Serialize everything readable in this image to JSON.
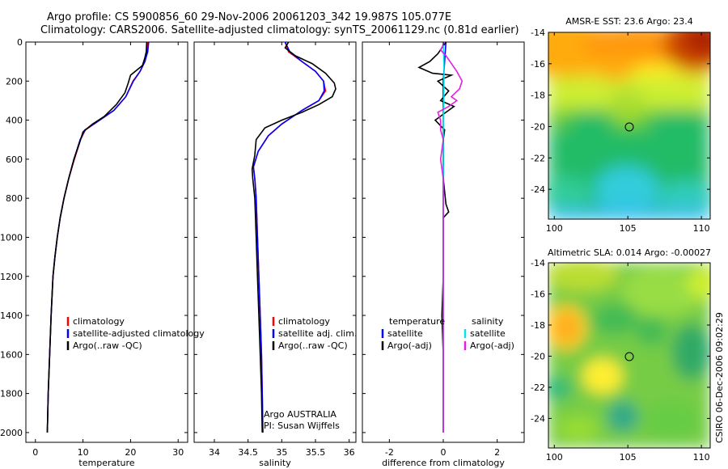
{
  "header": {
    "line1": "Argo profile: CS 5900856_60 29-Nov-2006 20061203_342 19.987S 105.077E",
    "line2": "Climatology: CARS2006. Satellite-adjusted climatology: synTS_20061129.nc (0.81d earlier)"
  },
  "footer": {
    "stamp": "CSIRO 06-Dec-2006 09:02:29"
  },
  "colors": {
    "climatology": "#ff0000",
    "satellite": "#0000ff",
    "argo": "#000000",
    "sal_satellite": "#00e5ee",
    "sal_argo": "#e020e0"
  },
  "chart_data": [
    {
      "type": "line",
      "id": "temperature",
      "xlabel": "temperature",
      "ylabel": "",
      "xlim": [
        -2,
        32
      ],
      "ylim": [
        2050,
        0
      ],
      "xticks": [
        0,
        10,
        20,
        30
      ],
      "yticks": [
        0,
        200,
        400,
        600,
        800,
        1000,
        1200,
        1400,
        1600,
        1800,
        2000
      ],
      "legend": [
        "climatology",
        "satellite-adjusted climatology",
        "Argo(..raw -QC)"
      ],
      "series": [
        {
          "name": "climatology",
          "color": "#ff0000",
          "points": [
            [
              23.6,
              0
            ],
            [
              23.5,
              50
            ],
            [
              23.0,
              100
            ],
            [
              22.0,
              150
            ],
            [
              20.5,
              200
            ],
            [
              19.0,
              280
            ],
            [
              16.5,
              350
            ],
            [
              13.5,
              400
            ],
            [
              10.5,
              450
            ],
            [
              9.5,
              500
            ],
            [
              8.2,
              600
            ],
            [
              7.0,
              700
            ],
            [
              6.0,
              800
            ],
            [
              5.2,
              900
            ],
            [
              4.6,
              1000
            ],
            [
              4.1,
              1100
            ],
            [
              3.7,
              1200
            ],
            [
              3.3,
              1400
            ],
            [
              3.0,
              1600
            ],
            [
              2.7,
              1800
            ],
            [
              2.5,
              2000
            ]
          ]
        },
        {
          "name": "satellite-adjusted climatology",
          "color": "#0000ff",
          "points": [
            [
              23.8,
              0
            ],
            [
              23.6,
              50
            ],
            [
              23.0,
              100
            ],
            [
              22.0,
              150
            ],
            [
              20.6,
              200
            ],
            [
              19.0,
              280
            ],
            [
              16.5,
              350
            ],
            [
              13.5,
              400
            ],
            [
              10.4,
              450
            ],
            [
              9.4,
              500
            ],
            [
              8.1,
              600
            ],
            [
              7.0,
              700
            ],
            [
              6.0,
              800
            ],
            [
              5.2,
              900
            ],
            [
              4.6,
              1000
            ],
            [
              4.1,
              1100
            ],
            [
              3.7,
              1200
            ],
            [
              3.3,
              1400
            ],
            [
              3.0,
              1600
            ],
            [
              2.7,
              1800
            ],
            [
              2.5,
              2000
            ]
          ]
        },
        {
          "name": "Argo(..raw -QC)",
          "color": "#000000",
          "points": [
            [
              23.4,
              0
            ],
            [
              23.3,
              50
            ],
            [
              23.0,
              80
            ],
            [
              22.5,
              120
            ],
            [
              20.0,
              170
            ],
            [
              19.5,
              210
            ],
            [
              18.8,
              260
            ],
            [
              17.0,
              320
            ],
            [
              14.5,
              380
            ],
            [
              12.0,
              420
            ],
            [
              10.0,
              460
            ],
            [
              9.5,
              500
            ],
            [
              8.1,
              600
            ],
            [
              7.0,
              700
            ],
            [
              6.0,
              800
            ],
            [
              5.2,
              900
            ],
            [
              4.6,
              1000
            ],
            [
              4.1,
              1100
            ],
            [
              3.7,
              1200
            ],
            [
              3.3,
              1400
            ],
            [
              3.0,
              1600
            ],
            [
              2.7,
              1800
            ],
            [
              2.5,
              2000
            ]
          ]
        }
      ]
    },
    {
      "type": "line",
      "id": "salinity",
      "xlabel": "salinity",
      "xlim": [
        33.7,
        36.1
      ],
      "ylim": [
        2050,
        0
      ],
      "xticks": [
        34,
        34.5,
        35,
        35.5,
        36
      ],
      "legend": [
        "climatology",
        "satellite adj. clim.",
        "Argo(..raw -QC)"
      ],
      "annotation": [
        "Argo AUSTRALIA",
        "PI: Susan Wijffels"
      ],
      "series": [
        {
          "name": "climatology",
          "color": "#ff0000",
          "points": [
            [
              35.05,
              0
            ],
            [
              35.1,
              50
            ],
            [
              35.3,
              100
            ],
            [
              35.5,
              150
            ],
            [
              35.62,
              200
            ],
            [
              35.65,
              250
            ],
            [
              35.55,
              300
            ],
            [
              35.3,
              350
            ],
            [
              35.0,
              420
            ],
            [
              34.8,
              480
            ],
            [
              34.65,
              560
            ],
            [
              34.58,
              640
            ],
            [
              34.6,
              700
            ],
            [
              34.62,
              800
            ],
            [
              34.64,
              1000
            ],
            [
              34.66,
              1200
            ],
            [
              34.68,
              1400
            ],
            [
              34.7,
              1600
            ],
            [
              34.71,
              1800
            ],
            [
              34.72,
              2000
            ]
          ]
        },
        {
          "name": "satellite adj. clim.",
          "color": "#0000ff",
          "points": [
            [
              35.05,
              0
            ],
            [
              35.12,
              50
            ],
            [
              35.3,
              100
            ],
            [
              35.5,
              150
            ],
            [
              35.62,
              200
            ],
            [
              35.63,
              250
            ],
            [
              35.55,
              300
            ],
            [
              35.3,
              350
            ],
            [
              35.0,
              420
            ],
            [
              34.8,
              480
            ],
            [
              34.65,
              560
            ],
            [
              34.58,
              640
            ],
            [
              34.6,
              700
            ],
            [
              34.62,
              800
            ],
            [
              34.64,
              1000
            ],
            [
              34.66,
              1200
            ],
            [
              34.68,
              1400
            ],
            [
              34.7,
              1600
            ],
            [
              34.71,
              1800
            ],
            [
              34.72,
              2000
            ]
          ]
        },
        {
          "name": "Argo(..raw -QC)",
          "color": "#000000",
          "points": [
            [
              35.1,
              0
            ],
            [
              35.05,
              30
            ],
            [
              35.2,
              70
            ],
            [
              35.45,
              110
            ],
            [
              35.65,
              160
            ],
            [
              35.78,
              210
            ],
            [
              35.8,
              240
            ],
            [
              35.75,
              280
            ],
            [
              35.55,
              320
            ],
            [
              35.3,
              360
            ],
            [
              35.0,
              400
            ],
            [
              34.75,
              440
            ],
            [
              34.62,
              500
            ],
            [
              34.6,
              580
            ],
            [
              34.56,
              650
            ],
            [
              34.57,
              700
            ],
            [
              34.6,
              800
            ],
            [
              34.62,
              1000
            ],
            [
              34.64,
              1200
            ],
            [
              34.66,
              1400
            ],
            [
              34.68,
              1600
            ],
            [
              34.7,
              1800
            ],
            [
              34.71,
              2000
            ]
          ]
        }
      ]
    },
    {
      "type": "line",
      "id": "difference",
      "xlabel": "difference from climatology",
      "xlim": [
        -3,
        3
      ],
      "ylim": [
        2050,
        0
      ],
      "xticks": [
        -2,
        0,
        2
      ],
      "legend_temperature": [
        "temperature",
        "satellite",
        "Argo(-adj)"
      ],
      "legend_salinity": [
        "salinity",
        "satellite",
        "Argo(-adj)"
      ],
      "series": [
        {
          "name": "temperature satellite",
          "color": "#0000ff",
          "points": [
            [
              0.1,
              0
            ],
            [
              0.05,
              100
            ],
            [
              0,
              200
            ],
            [
              0,
              400
            ],
            [
              0,
              600
            ],
            [
              0,
              1000
            ],
            [
              0,
              1500
            ],
            [
              0,
              2000
            ]
          ]
        },
        {
          "name": "temperature Argo(-adj)",
          "color": "#000000",
          "points": [
            [
              0.1,
              0
            ],
            [
              -0.2,
              60
            ],
            [
              -0.5,
              100
            ],
            [
              -0.9,
              130
            ],
            [
              -0.4,
              160
            ],
            [
              0.3,
              170
            ],
            [
              -0.2,
              200
            ],
            [
              0.2,
              250
            ],
            [
              -0.1,
              300
            ],
            [
              0.4,
              330
            ],
            [
              0.1,
              360
            ],
            [
              -0.3,
              400
            ],
            [
              0.05,
              450
            ],
            [
              0,
              500
            ],
            [
              0,
              700
            ],
            [
              0.1,
              830
            ],
            [
              0.2,
              870
            ],
            [
              0,
              900
            ],
            [
              0,
              1200
            ],
            [
              -0.05,
              1400
            ],
            [
              0,
              1600
            ],
            [
              0,
              2000
            ]
          ]
        },
        {
          "name": "salinity satellite",
          "color": "#00e5ee",
          "points": [
            [
              0,
              0
            ],
            [
              0.03,
              150
            ],
            [
              0.02,
              300
            ],
            [
              0,
              400
            ],
            [
              0,
              700
            ],
            [
              0,
              1000
            ],
            [
              0,
              1500
            ],
            [
              0,
              2000
            ]
          ]
        },
        {
          "name": "salinity Argo(-adj)",
          "color": "#e020e0",
          "points": [
            [
              0.05,
              0
            ],
            [
              -0.1,
              40
            ],
            [
              0.1,
              70
            ],
            [
              0.3,
              110
            ],
            [
              0.5,
              150
            ],
            [
              0.7,
              200
            ],
            [
              0.6,
              240
            ],
            [
              0.3,
              280
            ],
            [
              0.5,
              300
            ],
            [
              0.2,
              330
            ],
            [
              -0.2,
              360
            ],
            [
              -0.1,
              400
            ],
            [
              -0.1,
              450
            ],
            [
              0,
              500
            ],
            [
              -0.1,
              600
            ],
            [
              0,
              700
            ],
            [
              0,
              1000
            ],
            [
              0,
              1300
            ],
            [
              0,
              1600
            ],
            [
              0,
              2000
            ]
          ]
        }
      ]
    },
    {
      "type": "heatmap",
      "id": "sst",
      "title": "AMSR-E SST: 23.6 Argo: 23.4",
      "xlim": [
        99.6,
        110.6
      ],
      "ylim": [
        -25.9,
        -14
      ],
      "xticks": [
        100,
        105,
        110
      ],
      "yticks": [
        -14,
        -16,
        -18,
        -20,
        -22,
        -24
      ],
      "marker": [
        105.077,
        -19.987
      ]
    },
    {
      "type": "heatmap",
      "id": "sla",
      "title": "Altimetric SLA: 0.014 Argo: -0.00027",
      "xlim": [
        99.6,
        110.6
      ],
      "ylim": [
        -25.9,
        -14
      ],
      "xticks": [
        100,
        105,
        110
      ],
      "yticks": [
        -14,
        -16,
        -18,
        -20,
        -22,
        -24
      ],
      "marker": [
        105.077,
        -19.987
      ]
    }
  ]
}
